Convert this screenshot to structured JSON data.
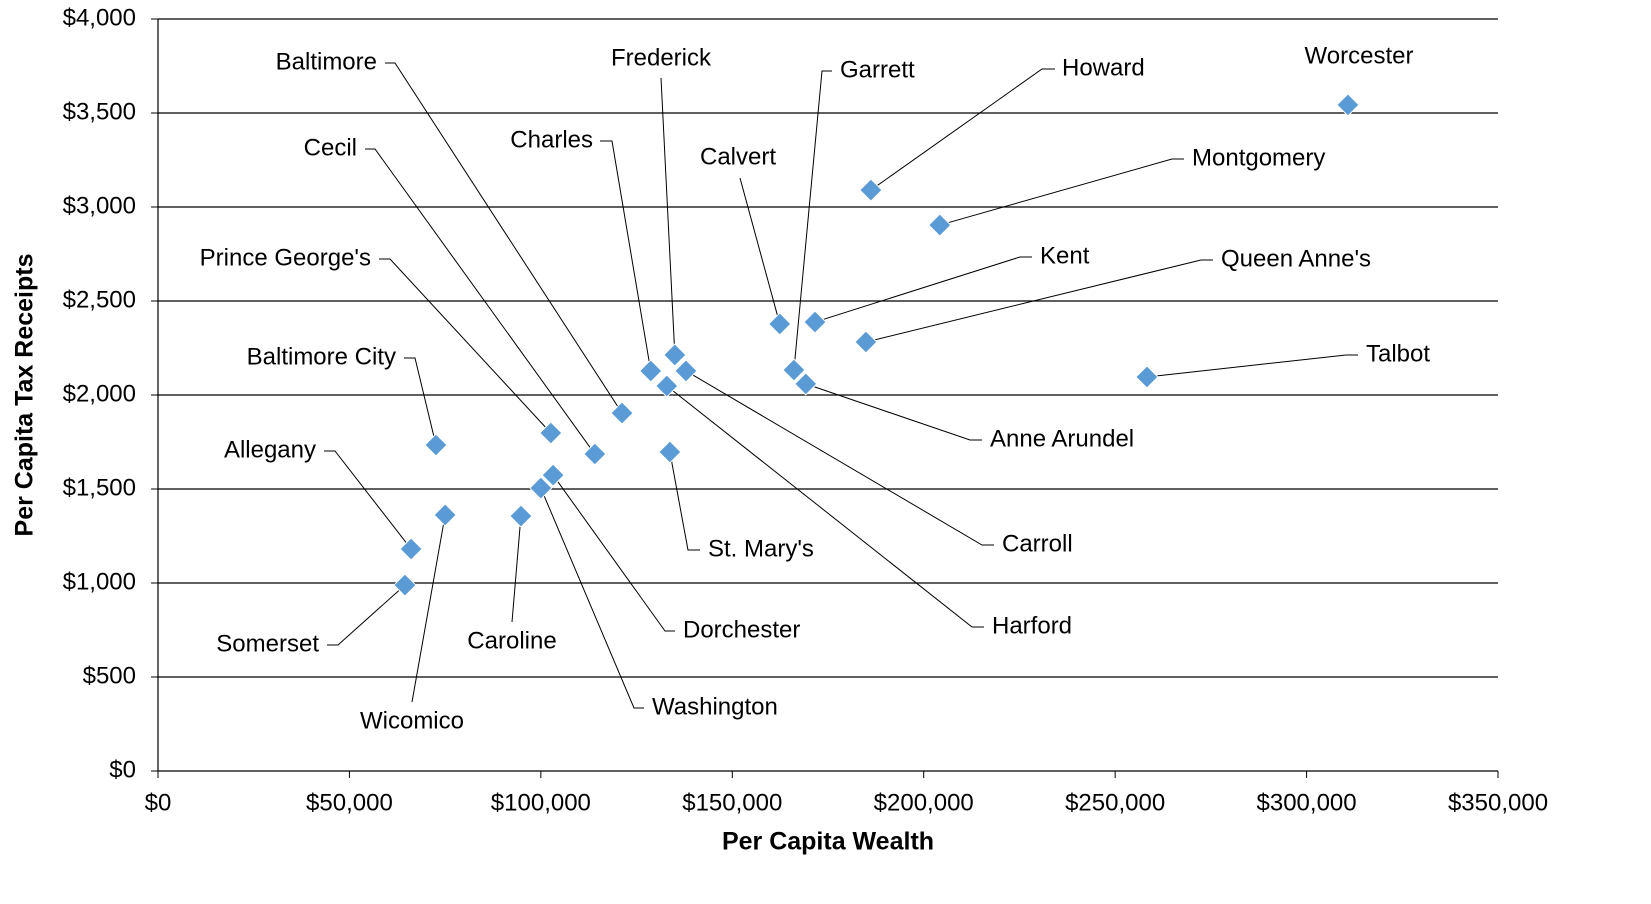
{
  "chart_data": {
    "type": "scatter",
    "xlabel": "Per Capita Wealth",
    "ylabel": "Per Capita Tax Receipts",
    "xlim": [
      0,
      350000
    ],
    "ylim": [
      0,
      4000
    ],
    "xticks": [
      {
        "value": 0,
        "label": "$0"
      },
      {
        "value": 50000,
        "label": "$50,000"
      },
      {
        "value": 100000,
        "label": "$100,000"
      },
      {
        "value": 150000,
        "label": "$150,000"
      },
      {
        "value": 200000,
        "label": "$200,000"
      },
      {
        "value": 250000,
        "label": "$250,000"
      },
      {
        "value": 300000,
        "label": "$300,000"
      },
      {
        "value": 350000,
        "label": "$350,000"
      }
    ],
    "yticks": [
      {
        "value": 0,
        "label": "$0"
      },
      {
        "value": 500,
        "label": "$500"
      },
      {
        "value": 1000,
        "label": "$1,000"
      },
      {
        "value": 1500,
        "label": "$1,500"
      },
      {
        "value": 2000,
        "label": "$2,000"
      },
      {
        "value": 2500,
        "label": "$2,500"
      },
      {
        "value": 3000,
        "label": "$3,000"
      },
      {
        "value": 3500,
        "label": "$3,500"
      },
      {
        "value": 4000,
        "label": "$4,000"
      }
    ],
    "grid": true,
    "series": [
      {
        "color": "#5b9bd5",
        "point_labels": [
          "Worcester",
          "Howard",
          "Montgomery",
          "Kent",
          "Queen Anne's",
          "Talbot",
          "Calvert",
          "Garrett",
          "Anne Arundel",
          "Frederick",
          "Charles",
          "Carroll",
          "Harford",
          "Baltimore",
          "Cecil",
          "Prince George's",
          "St. Mary's",
          "Baltimore City",
          "Allegany",
          "Somerset",
          "Wicomico",
          "Caroline",
          "Dorchester",
          "Washington"
        ],
        "x": [
          310800,
          186200,
          204200,
          171600,
          184900,
          258300,
          162400,
          166100,
          169200,
          135000,
          128700,
          137900,
          132900,
          121200,
          114100,
          102600,
          133700,
          72600,
          66100,
          64500,
          75000,
          94800,
          103200,
          100000
        ],
        "values": [
          3543,
          3090,
          2904,
          2388,
          2282,
          2096,
          2378,
          2133,
          2059,
          2213,
          2128,
          2128,
          2048,
          1904,
          1686,
          1798,
          1697,
          1734,
          1181,
          989,
          1362,
          1356,
          1574,
          1505
        ]
      }
    ]
  }
}
